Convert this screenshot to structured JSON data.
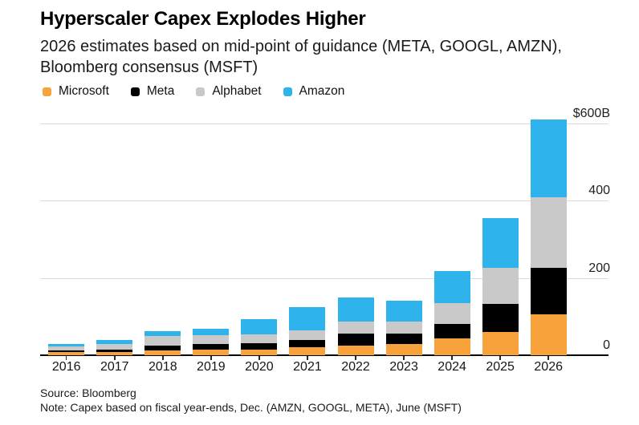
{
  "header": {
    "title": "Hyperscaler Capex Explodes Higher",
    "subtitle_line1": "2026 estimates based on mid-point of guidance (META, GOOGL, AMZN),",
    "subtitle_line2": "Bloomberg consensus (MSFT)"
  },
  "legend": {
    "items": [
      {
        "label": "Microsoft",
        "color": "#f7a23b"
      },
      {
        "label": "Meta",
        "color": "#000000"
      },
      {
        "label": "Alphabet",
        "color": "#c9c9c9"
      },
      {
        "label": "Amazon",
        "color": "#2fb3ec"
      }
    ]
  },
  "chart_data": {
    "type": "bar",
    "stacked": true,
    "title": "Hyperscaler Capex Explodes Higher",
    "unit": "billions USD",
    "categories": [
      "2016",
      "2017",
      "2018",
      "2019",
      "2020",
      "2021",
      "2022",
      "2023",
      "2024",
      "2025",
      "2026"
    ],
    "series": [
      {
        "name": "Microsoft",
        "color": "#f7a23b",
        "values": [
          8.1,
          8.7,
          11.6,
          13.9,
          15.4,
          20.6,
          23.9,
          28.1,
          44.5,
          61,
          105
        ]
      },
      {
        "name": "Meta",
        "color": "#000000",
        "values": [
          4.5,
          6.7,
          13.9,
          15.1,
          15.7,
          18.6,
          31.4,
          27.3,
          37.3,
          72,
          122
        ]
      },
      {
        "name": "Alphabet",
        "color": "#c9c9c9",
        "values": [
          10.2,
          13.2,
          25.1,
          23.5,
          22.3,
          24.6,
          31.5,
          32.3,
          52.5,
          93,
          183
        ]
      },
      {
        "name": "Amazon",
        "color": "#2fb3ec",
        "values": [
          6.7,
          10.1,
          11.3,
          16.9,
          40.1,
          61.1,
          63.6,
          52.7,
          83,
          128,
          200
        ]
      }
    ],
    "yticks": [
      {
        "value": 0,
        "label": "0"
      },
      {
        "value": 200,
        "label": "200"
      },
      {
        "value": 400,
        "label": "400"
      },
      {
        "value": 600,
        "label": "$600B"
      }
    ],
    "ylim": [
      0,
      612
    ],
    "grid": "horizontal",
    "legend_position": "top",
    "xlabel": "",
    "ylabel": ""
  },
  "footer": {
    "source": "Source: Bloomberg",
    "note": "Note: Capex based on fiscal year-ends, Dec. (AMZN, GOOGL, META), June (MSFT)"
  }
}
